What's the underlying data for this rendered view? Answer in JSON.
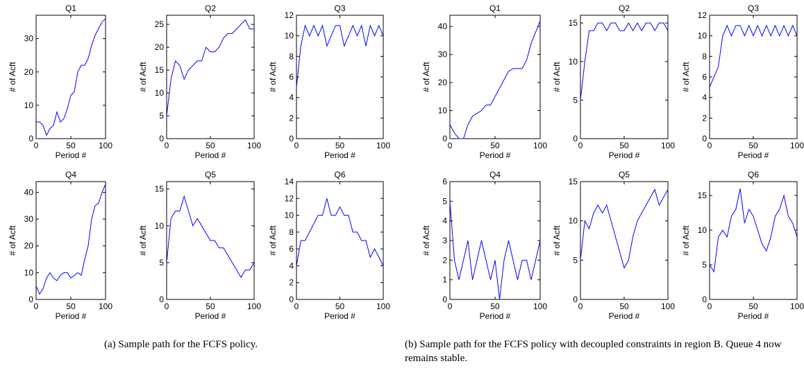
{
  "chart_data": [
    {
      "type": "line",
      "title": "Q1",
      "xlabel": "Period #",
      "ylabel": "# of Acft",
      "xlim": [
        0,
        100
      ],
      "xticks": [
        0,
        50,
        100
      ],
      "ylim": [
        0,
        37
      ],
      "yticks": [
        0,
        10,
        20,
        30
      ],
      "x": [
        0,
        5,
        10,
        15,
        20,
        25,
        30,
        35,
        40,
        45,
        50,
        55,
        60,
        65,
        70,
        75,
        80,
        85,
        90,
        95,
        100
      ],
      "series": [
        {
          "color": "#0000ff",
          "values": [
            5,
            5,
            4,
            1,
            3,
            4,
            8,
            5,
            6,
            9,
            13,
            14,
            20,
            22,
            22,
            24,
            28,
            31,
            33,
            35,
            36
          ]
        }
      ]
    },
    {
      "type": "line",
      "title": "Q2",
      "xlabel": "Period #",
      "ylabel": "# of Acft",
      "xlim": [
        0,
        100
      ],
      "xticks": [
        0,
        50,
        100
      ],
      "ylim": [
        0,
        27
      ],
      "yticks": [
        0,
        5,
        10,
        15,
        20,
        25
      ],
      "x": [
        0,
        5,
        10,
        15,
        20,
        25,
        30,
        35,
        40,
        45,
        50,
        55,
        60,
        65,
        70,
        75,
        80,
        85,
        90,
        95,
        100
      ],
      "series": [
        {
          "color": "#0000ff",
          "values": [
            5,
            13,
            17,
            16,
            13,
            15,
            16,
            17,
            17,
            20,
            19,
            19,
            20,
            22,
            23,
            23,
            24,
            25,
            26,
            24,
            24
          ]
        }
      ]
    },
    {
      "type": "line",
      "title": "Q3",
      "xlabel": "Period #",
      "ylabel": "# of Acft",
      "xlim": [
        0,
        100
      ],
      "xticks": [
        0,
        50,
        100
      ],
      "ylim": [
        0,
        12
      ],
      "yticks": [
        0,
        2,
        4,
        6,
        8,
        10,
        12
      ],
      "x": [
        0,
        5,
        10,
        15,
        20,
        25,
        30,
        35,
        40,
        45,
        50,
        55,
        60,
        65,
        70,
        75,
        80,
        85,
        90,
        95,
        100
      ],
      "series": [
        {
          "color": "#0000ff",
          "values": [
            5,
            9,
            11,
            10,
            11,
            10,
            11,
            9,
            10,
            11,
            11,
            9,
            10,
            11,
            10,
            11,
            9,
            11,
            10,
            11,
            10
          ]
        }
      ]
    },
    {
      "type": "line",
      "title": "Q4",
      "xlabel": "Period #",
      "ylabel": "# of Acft",
      "xlim": [
        0,
        100
      ],
      "xticks": [
        0,
        50,
        100
      ],
      "ylim": [
        0,
        44
      ],
      "yticks": [
        0,
        10,
        20,
        30,
        40
      ],
      "x": [
        0,
        5,
        10,
        15,
        20,
        25,
        30,
        35,
        40,
        45,
        50,
        55,
        60,
        65,
        70,
        75,
        80,
        85,
        90,
        95,
        100
      ],
      "series": [
        {
          "color": "#0000ff",
          "values": [
            5,
            2,
            4,
            8,
            10,
            8,
            7,
            9,
            10,
            10,
            8,
            9,
            10,
            9,
            15,
            20,
            30,
            35,
            36,
            40,
            43
          ]
        }
      ]
    },
    {
      "type": "line",
      "title": "Q5",
      "xlabel": "Period #",
      "ylabel": "# of Acft",
      "xlim": [
        0,
        100
      ],
      "xticks": [
        0,
        50,
        100
      ],
      "ylim": [
        0,
        16
      ],
      "yticks": [
        0,
        5,
        10,
        15
      ],
      "x": [
        0,
        5,
        10,
        15,
        20,
        25,
        30,
        35,
        40,
        45,
        50,
        55,
        60,
        65,
        70,
        75,
        80,
        85,
        90,
        95,
        100
      ],
      "series": [
        {
          "color": "#0000ff",
          "values": [
            5,
            11,
            12,
            12,
            14,
            12,
            10,
            11,
            10,
            9,
            8,
            8,
            7,
            7,
            6,
            5,
            4,
            3,
            4,
            4,
            5
          ]
        }
      ]
    },
    {
      "type": "line",
      "title": "Q6",
      "xlabel": "Period #",
      "ylabel": "# of Acft",
      "xlim": [
        0,
        100
      ],
      "xticks": [
        0,
        50,
        100
      ],
      "ylim": [
        0,
        14
      ],
      "yticks": [
        0,
        2,
        4,
        6,
        8,
        10,
        12,
        14
      ],
      "x": [
        0,
        5,
        10,
        15,
        20,
        25,
        30,
        35,
        40,
        45,
        50,
        55,
        60,
        65,
        70,
        75,
        80,
        85,
        90,
        95,
        100
      ],
      "series": [
        {
          "color": "#0000ff",
          "values": [
            4,
            7,
            7,
            8,
            9,
            10,
            10,
            12,
            10,
            10,
            11,
            10,
            10,
            8,
            8,
            7,
            7,
            5,
            6,
            5,
            4
          ]
        }
      ]
    },
    {
      "type": "line",
      "title": "Q1",
      "xlabel": "Period #",
      "ylabel": "# of Acft",
      "xlim": [
        0,
        100
      ],
      "xticks": [
        0,
        50,
        100
      ],
      "ylim": [
        0,
        44
      ],
      "yticks": [
        0,
        10,
        20,
        30,
        40
      ],
      "x": [
        0,
        5,
        10,
        15,
        20,
        25,
        30,
        35,
        40,
        45,
        50,
        55,
        60,
        65,
        70,
        75,
        80,
        85,
        90,
        95,
        100
      ],
      "series": [
        {
          "color": "#0000ff",
          "values": [
            5,
            2,
            0,
            0,
            5,
            8,
            9,
            10,
            12,
            12,
            15,
            18,
            21,
            24,
            25,
            25,
            25,
            28,
            34,
            38,
            42
          ]
        }
      ]
    },
    {
      "type": "line",
      "title": "Q2",
      "xlabel": "Period #",
      "ylabel": "# of Acft",
      "xlim": [
        0,
        100
      ],
      "xticks": [
        0,
        50,
        100
      ],
      "ylim": [
        0,
        16
      ],
      "yticks": [
        0,
        5,
        10,
        15
      ],
      "x": [
        0,
        5,
        10,
        15,
        20,
        25,
        30,
        35,
        40,
        45,
        50,
        55,
        60,
        65,
        70,
        75,
        80,
        85,
        90,
        95,
        100
      ],
      "series": [
        {
          "color": "#0000ff",
          "values": [
            5,
            10,
            14,
            14,
            15,
            15,
            14,
            15,
            15,
            14,
            14,
            15,
            14,
            15,
            14,
            15,
            15,
            14,
            15,
            15,
            14
          ]
        }
      ]
    },
    {
      "type": "line",
      "title": "Q3",
      "xlabel": "Period #",
      "ylabel": "# of Acft",
      "xlim": [
        0,
        100
      ],
      "xticks": [
        0,
        50,
        100
      ],
      "ylim": [
        0,
        12
      ],
      "yticks": [
        0,
        2,
        4,
        6,
        8,
        10,
        12
      ],
      "x": [
        0,
        5,
        10,
        15,
        20,
        25,
        30,
        35,
        40,
        45,
        50,
        55,
        60,
        65,
        70,
        75,
        80,
        85,
        90,
        95,
        100
      ],
      "series": [
        {
          "color": "#0000ff",
          "values": [
            5,
            6,
            7,
            10,
            11,
            10,
            11,
            11,
            10,
            11,
            10,
            11,
            10,
            11,
            10,
            11,
            10,
            11,
            10,
            11,
            10
          ]
        }
      ]
    },
    {
      "type": "line",
      "title": "Q4",
      "xlabel": "Period #",
      "ylabel": "# of Acft",
      "xlim": [
        0,
        100
      ],
      "xticks": [
        0,
        50,
        100
      ],
      "ylim": [
        0,
        6
      ],
      "yticks": [
        0,
        1,
        2,
        3,
        4,
        5,
        6
      ],
      "x": [
        0,
        5,
        10,
        15,
        20,
        25,
        30,
        35,
        40,
        45,
        50,
        55,
        60,
        65,
        70,
        75,
        80,
        85,
        90,
        95,
        100
      ],
      "series": [
        {
          "color": "#0000ff",
          "values": [
            5,
            2,
            1,
            2,
            3,
            1,
            2,
            3,
            2,
            1,
            2,
            0,
            2,
            3,
            2,
            1,
            2,
            2,
            1,
            2,
            3
          ]
        }
      ]
    },
    {
      "type": "line",
      "title": "Q5",
      "xlabel": "Period #",
      "ylabel": "# of Acft",
      "xlim": [
        0,
        100
      ],
      "xticks": [
        0,
        50,
        100
      ],
      "ylim": [
        0,
        15
      ],
      "yticks": [
        0,
        5,
        10,
        15
      ],
      "x": [
        0,
        5,
        10,
        15,
        20,
        25,
        30,
        35,
        40,
        45,
        50,
        55,
        60,
        65,
        70,
        75,
        80,
        85,
        90,
        95,
        100
      ],
      "series": [
        {
          "color": "#0000ff",
          "values": [
            5,
            10,
            9,
            11,
            12,
            11,
            12,
            10,
            8,
            6,
            4,
            5,
            8,
            10,
            11,
            12,
            13,
            14,
            12,
            13,
            14
          ]
        }
      ]
    },
    {
      "type": "line",
      "title": "Q6",
      "xlabel": "Period #",
      "ylabel": "# of Acft",
      "xlim": [
        0,
        100
      ],
      "xticks": [
        0,
        50,
        100
      ],
      "ylim": [
        0,
        17
      ],
      "yticks": [
        0,
        5,
        10,
        15
      ],
      "x": [
        0,
        5,
        10,
        15,
        20,
        25,
        30,
        35,
        40,
        45,
        50,
        55,
        60,
        65,
        70,
        75,
        80,
        85,
        90,
        95,
        100
      ],
      "series": [
        {
          "color": "#0000ff",
          "values": [
            5,
            4,
            9,
            10,
            9,
            12,
            13,
            16,
            11,
            13,
            12,
            10,
            8,
            7,
            9,
            12,
            13,
            15,
            12,
            11,
            9
          ]
        }
      ]
    }
  ],
  "captions": [
    "(a)  Sample path for the FCFS policy.",
    "(b)  Sample path for the FCFS policy with decoupled constraints in region B. Queue 4 now remains stable."
  ]
}
